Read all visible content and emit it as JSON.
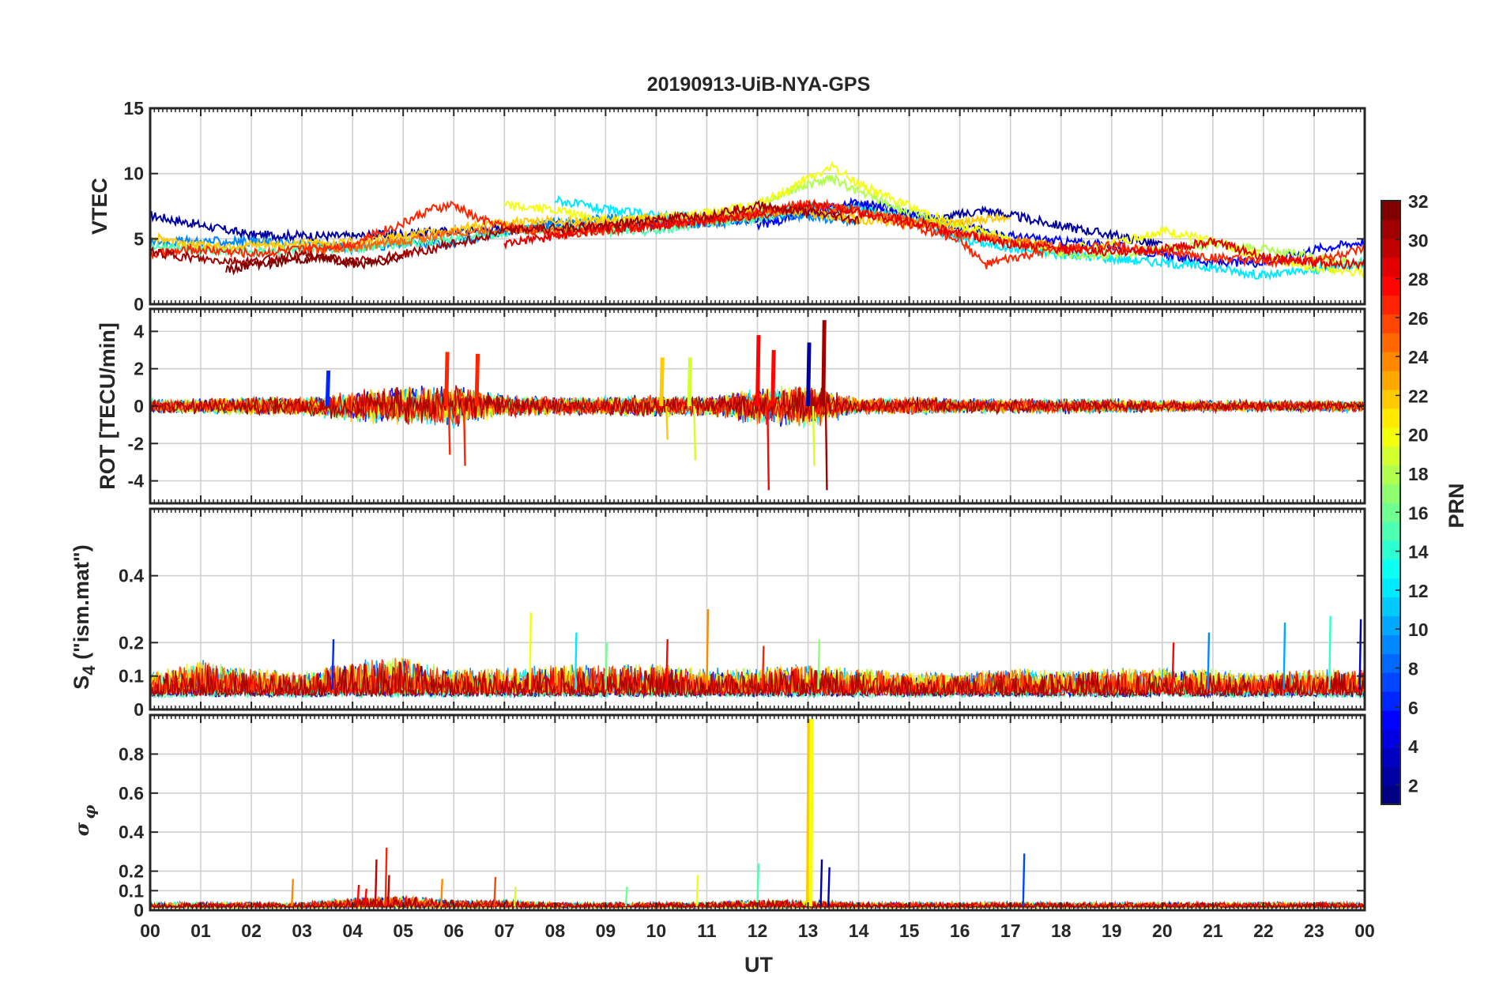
{
  "figure": {
    "title": "20190913-UiB-NYA-GPS",
    "xlabel": "UT",
    "x_tick_labels": [
      "00",
      "01",
      "02",
      "03",
      "04",
      "05",
      "06",
      "07",
      "08",
      "09",
      "10",
      "11",
      "12",
      "13",
      "14",
      "15",
      "16",
      "17",
      "18",
      "19",
      "20",
      "21",
      "22",
      "23",
      "00"
    ]
  },
  "colorbar": {
    "label": "PRN",
    "colormap": "jet",
    "tick_labels": [
      "2",
      "4",
      "6",
      "8",
      "10",
      "12",
      "14",
      "16",
      "18",
      "20",
      "22",
      "24",
      "26",
      "28",
      "30",
      "32"
    ]
  },
  "chart_data": [
    {
      "type": "line",
      "ylabel": "VTEC",
      "ylim": [
        0,
        15
      ],
      "yticks": [
        0,
        5,
        10,
        15
      ],
      "ytick_labels": [
        "0",
        "5",
        "10",
        "15"
      ],
      "x_unit": "hours UT",
      "xlim": [
        0,
        24
      ],
      "grid": true,
      "color_by": "PRN",
      "series": [
        {
          "prn": 2,
          "x": [
            0,
            2,
            4,
            6,
            8,
            10,
            12,
            14,
            15.5,
            16.5,
            18,
            19,
            20
          ],
          "y": [
            6.8,
            5.3,
            5.2,
            5.6,
            6.0,
            6.2,
            6.5,
            7.5,
            6.5,
            7.2,
            6.0,
            5.3,
            4.5
          ]
        },
        {
          "prn": 5,
          "x": [
            12,
            13,
            14,
            15,
            16,
            17,
            18,
            19,
            20,
            21,
            22,
            23,
            24
          ],
          "y": [
            6.0,
            7.0,
            7.8,
            7.0,
            6.0,
            5.2,
            4.8,
            4.5,
            3.8,
            3.2,
            3.2,
            4.2,
            4.8
          ]
        },
        {
          "prn": 9,
          "x": [
            0,
            1,
            2,
            3,
            4,
            5,
            6,
            7,
            8,
            9,
            10,
            11,
            12,
            13,
            14
          ],
          "y": [
            4.8,
            4.8,
            4.8,
            4.6,
            4.3,
            4.6,
            4.7,
            5.6,
            6.2,
            6.6,
            6.4,
            6.1,
            6.6,
            6.8,
            6.2
          ]
        },
        {
          "prn": 12,
          "x": [
            8,
            9,
            10,
            11,
            12,
            13,
            14,
            15,
            16,
            17,
            18,
            19,
            20,
            21,
            22,
            23,
            24
          ],
          "y": [
            8.0,
            7.2,
            6.8,
            6.6,
            6.8,
            7.5,
            7.3,
            6.5,
            5.0,
            4.3,
            3.8,
            3.5,
            3.2,
            2.8,
            2.2,
            2.6,
            3.2
          ]
        },
        {
          "prn": 15,
          "x": [
            0,
            1,
            2,
            3,
            4,
            5,
            6,
            7,
            8,
            9,
            10,
            11,
            12,
            13
          ],
          "y": [
            4.5,
            4.2,
            4.0,
            4.2,
            4.3,
            4.6,
            5.0,
            5.5,
            5.8,
            5.6,
            5.6,
            6.3,
            6.5,
            7.6
          ]
        },
        {
          "prn": 18,
          "x": [
            12,
            12.5,
            13,
            13.5,
            14,
            15,
            16,
            17,
            18,
            19,
            20,
            21,
            22,
            23,
            24
          ],
          "y": [
            7.5,
            8.5,
            9.2,
            9.6,
            8.6,
            7.0,
            5.8,
            4.8,
            3.8,
            3.8,
            4.2,
            4.6,
            4.2,
            3.6,
            3.0
          ]
        },
        {
          "prn": 20,
          "x": [
            7,
            8,
            9,
            10,
            11,
            12,
            12.5,
            13,
            13.5,
            14,
            15,
            16,
            17,
            18,
            19,
            20,
            21,
            22,
            23,
            24
          ],
          "y": [
            7.6,
            7.2,
            6.4,
            6.6,
            7.0,
            7.6,
            8.5,
            9.6,
            10.5,
            9.2,
            7.5,
            6.0,
            5.0,
            4.2,
            4.6,
            5.6,
            4.8,
            3.6,
            2.8,
            2.3
          ]
        },
        {
          "prn": 22,
          "x": [
            0,
            1,
            2,
            3,
            4,
            5,
            6,
            7,
            8,
            9,
            10,
            11,
            12,
            13,
            14,
            15,
            16,
            17
          ],
          "y": [
            5.2,
            4.5,
            4.5,
            4.6,
            4.8,
            5.2,
            5.8,
            6.2,
            6.4,
            6.3,
            6.6,
            6.8,
            7.2,
            7.0,
            6.5,
            6.2,
            6.2,
            6.8
          ]
        },
        {
          "prn": 25,
          "x": [
            3,
            4,
            5,
            6,
            7,
            8,
            9,
            10,
            11,
            12,
            13,
            14,
            15,
            16,
            17,
            18
          ],
          "y": [
            4.2,
            4.3,
            4.8,
            5.5,
            5.8,
            5.6,
            6.0,
            6.3,
            6.5,
            6.8,
            7.5,
            7.0,
            6.5,
            5.4,
            4.8,
            4.5
          ]
        },
        {
          "prn": 27,
          "x": [
            0,
            1,
            2,
            3,
            4,
            4.5,
            5,
            5.5,
            6,
            6.5,
            7,
            8,
            9,
            10,
            11,
            12,
            13,
            14,
            15,
            16,
            16.5,
            17,
            18,
            19,
            20,
            21,
            22,
            23,
            24
          ],
          "y": [
            3.8,
            4.2,
            3.9,
            4.2,
            4.6,
            5.5,
            6.2,
            7.2,
            7.6,
            6.5,
            6.0,
            5.4,
            5.6,
            6.0,
            6.4,
            7.0,
            7.8,
            7.2,
            6.0,
            5.0,
            3.0,
            3.5,
            4.2,
            4.5,
            4.0,
            3.6,
            3.2,
            3.4,
            4.2
          ]
        },
        {
          "prn": 29,
          "x": [
            7,
            8,
            9,
            10,
            11,
            12,
            13,
            14,
            15,
            16,
            17,
            18,
            19,
            20,
            21,
            22,
            23,
            24
          ],
          "y": [
            4.6,
            5.2,
            5.8,
            6.0,
            6.4,
            6.8,
            7.6,
            7.0,
            6.4,
            5.4,
            4.6,
            4.2,
            4.0,
            4.2,
            4.8,
            3.6,
            3.2,
            3.0
          ]
        },
        {
          "prn": 31,
          "x": [
            0,
            1,
            2,
            3,
            4,
            5,
            6,
            7,
            8,
            9,
            10,
            11,
            12,
            13,
            14
          ],
          "y": [
            4.0,
            3.4,
            3.2,
            3.8,
            3.2,
            3.8,
            4.6,
            5.6,
            5.8,
            6.0,
            6.5,
            6.8,
            7.6,
            7.0,
            6.4
          ]
        },
        {
          "prn": 32,
          "x": [
            1.5,
            2,
            3,
            3.5,
            4,
            4.5,
            5
          ],
          "y": [
            2.6,
            3.0,
            3.4,
            3.6,
            3.0,
            3.2,
            3.6
          ]
        }
      ]
    },
    {
      "type": "line",
      "ylabel": "ROT [TECU/min]",
      "ylim": [
        -5.2,
        5.2
      ],
      "yticks": [
        -4,
        -2,
        0,
        2,
        4
      ],
      "ytick_labels": [
        "-4",
        "-2",
        "0",
        "2",
        "4"
      ],
      "x_unit": "hours UT",
      "xlim": [
        0,
        24
      ],
      "grid": true,
      "color_by": "PRN",
      "noise_envelope": {
        "x": [
          0,
          1,
          2,
          3,
          4,
          5,
          6,
          7,
          8,
          9,
          10,
          11,
          12,
          13,
          14,
          15,
          16,
          17,
          18,
          19,
          20,
          21,
          22,
          23,
          24
        ],
        "amplitude": [
          0.4,
          0.4,
          0.5,
          0.5,
          0.8,
          1.0,
          1.1,
          0.6,
          0.5,
          0.5,
          0.6,
          0.5,
          1.0,
          1.2,
          0.4,
          0.5,
          0.4,
          0.4,
          0.4,
          0.4,
          0.3,
          0.3,
          0.3,
          0.3,
          0.3
        ]
      },
      "spikes": [
        {
          "x": 3.5,
          "y": 1.9,
          "prn": 6
        },
        {
          "x": 5.85,
          "y": 2.9,
          "prn": 27
        },
        {
          "x": 5.9,
          "y": -2.6,
          "prn": 27
        },
        {
          "x": 6.2,
          "y": -3.2,
          "prn": 27
        },
        {
          "x": 6.45,
          "y": 2.8,
          "prn": 27
        },
        {
          "x": 10.1,
          "y": 2.6,
          "prn": 22
        },
        {
          "x": 10.2,
          "y": -1.8,
          "prn": 22
        },
        {
          "x": 10.65,
          "y": 2.6,
          "prn": 19
        },
        {
          "x": 10.75,
          "y": -2.9,
          "prn": 19
        },
        {
          "x": 12.0,
          "y": 3.8,
          "prn": 28
        },
        {
          "x": 12.2,
          "y": -4.5,
          "prn": 28
        },
        {
          "x": 12.3,
          "y": 3.0,
          "prn": 28
        },
        {
          "x": 13.0,
          "y": 3.4,
          "prn": 2
        },
        {
          "x": 13.1,
          "y": -3.2,
          "prn": 19
        },
        {
          "x": 13.3,
          "y": 4.6,
          "prn": 31
        },
        {
          "x": 13.35,
          "y": -4.5,
          "prn": 31
        }
      ]
    },
    {
      "type": "line",
      "ylabel": "S_4 (\"ism.mat\")",
      "ylim": [
        0,
        0.6
      ],
      "yticks": [
        0,
        0.1,
        0.2,
        0.4
      ],
      "ytick_labels": [
        "0",
        "0.1",
        "0.2",
        "0.4"
      ],
      "x_unit": "hours UT",
      "xlim": [
        0,
        24
      ],
      "grid": true,
      "color_by": "PRN",
      "baseline": 0.06,
      "noise_envelope": {
        "x": [
          0,
          1,
          2,
          3,
          4,
          5,
          6,
          7,
          8,
          9,
          10,
          11,
          12,
          13,
          14,
          15,
          16,
          17,
          18,
          19,
          20,
          21,
          22,
          23,
          24
        ],
        "amplitude": [
          0.05,
          0.08,
          0.06,
          0.05,
          0.08,
          0.09,
          0.06,
          0.06,
          0.07,
          0.07,
          0.07,
          0.06,
          0.06,
          0.07,
          0.06,
          0.05,
          0.05,
          0.06,
          0.06,
          0.06,
          0.06,
          0.06,
          0.05,
          0.06,
          0.06
        ]
      },
      "spikes": [
        {
          "x": 3.6,
          "y": 0.21,
          "prn": 6
        },
        {
          "x": 7.5,
          "y": 0.29,
          "prn": 20
        },
        {
          "x": 8.4,
          "y": 0.23,
          "prn": 12
        },
        {
          "x": 9.0,
          "y": 0.2,
          "prn": 16
        },
        {
          "x": 10.2,
          "y": 0.21,
          "prn": 28
        },
        {
          "x": 11.0,
          "y": 0.3,
          "prn": 24
        },
        {
          "x": 12.1,
          "y": 0.19,
          "prn": 27
        },
        {
          "x": 13.2,
          "y": 0.21,
          "prn": 17
        },
        {
          "x": 20.2,
          "y": 0.2,
          "prn": 28
        },
        {
          "x": 20.9,
          "y": 0.23,
          "prn": 9
        },
        {
          "x": 22.4,
          "y": 0.26,
          "prn": 10
        },
        {
          "x": 23.3,
          "y": 0.28,
          "prn": 14
        },
        {
          "x": 23.9,
          "y": 0.27,
          "prn": 3
        }
      ]
    },
    {
      "type": "line",
      "ylabel": "σ_φ",
      "ylim": [
        0,
        1
      ],
      "yticks": [
        0,
        0.1,
        0.2,
        0.4,
        0.6,
        0.8
      ],
      "ytick_labels": [
        "0",
        "0.1",
        "0.2",
        "0.4",
        "0.6",
        "0.8"
      ],
      "x_unit": "hours UT",
      "xlim": [
        0,
        24
      ],
      "grid": true,
      "color_by": "PRN",
      "baseline": 0.02,
      "noise_envelope": {
        "x": [
          0,
          1,
          2,
          3,
          4,
          5,
          6,
          7,
          8,
          9,
          10,
          11,
          12,
          13,
          14,
          15,
          16,
          17,
          18,
          19,
          20,
          21,
          22,
          23,
          24
        ],
        "amplitude": [
          0.02,
          0.02,
          0.02,
          0.02,
          0.04,
          0.05,
          0.03,
          0.03,
          0.02,
          0.02,
          0.02,
          0.02,
          0.03,
          0.03,
          0.02,
          0.02,
          0.02,
          0.02,
          0.02,
          0.02,
          0.02,
          0.02,
          0.02,
          0.02,
          0.02
        ]
      },
      "spikes": [
        {
          "x": 2.8,
          "y": 0.16,
          "prn": 24
        },
        {
          "x": 4.1,
          "y": 0.13,
          "prn": 28
        },
        {
          "x": 4.25,
          "y": 0.11,
          "prn": 28
        },
        {
          "x": 4.45,
          "y": 0.26,
          "prn": 30
        },
        {
          "x": 4.65,
          "y": 0.32,
          "prn": 27
        },
        {
          "x": 4.7,
          "y": 0.18,
          "prn": 30
        },
        {
          "x": 5.75,
          "y": 0.16,
          "prn": 24
        },
        {
          "x": 6.8,
          "y": 0.17,
          "prn": 26
        },
        {
          "x": 7.2,
          "y": 0.12,
          "prn": 19
        },
        {
          "x": 9.4,
          "y": 0.12,
          "prn": 16
        },
        {
          "x": 10.8,
          "y": 0.18,
          "prn": 20
        },
        {
          "x": 12.0,
          "y": 0.24,
          "prn": 15
        },
        {
          "x": 13.0,
          "y": 0.98,
          "prn": 22
        },
        {
          "x": 13.05,
          "y": 0.98,
          "prn": 20
        },
        {
          "x": 13.25,
          "y": 0.26,
          "prn": 2
        },
        {
          "x": 13.4,
          "y": 0.22,
          "prn": 3
        },
        {
          "x": 17.25,
          "y": 0.29,
          "prn": 7
        }
      ]
    }
  ]
}
